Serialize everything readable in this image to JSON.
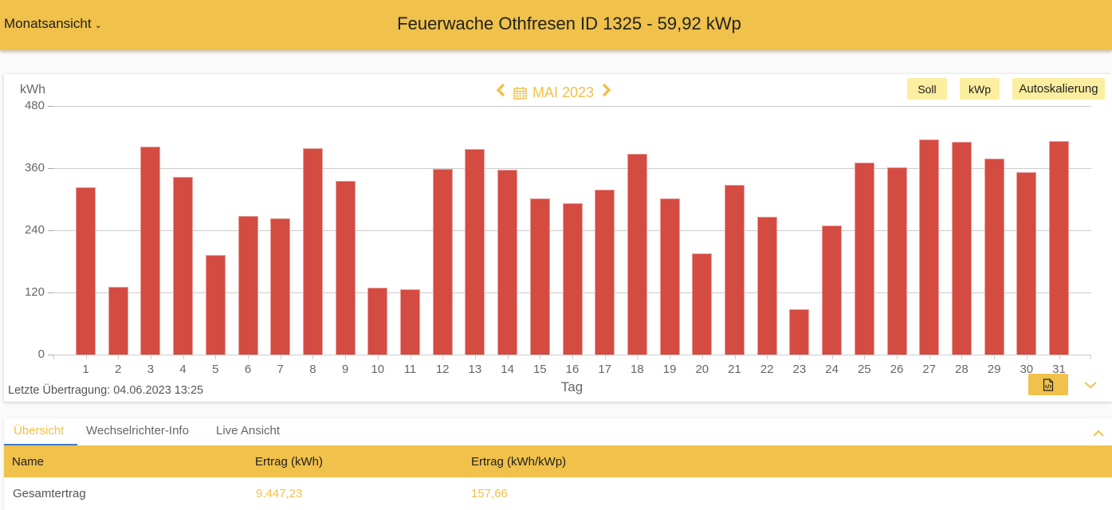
{
  "header": {
    "view_select": "Monatsansicht",
    "title": "Feuerwache Othfresen ID 1325 - 59,92 kWp"
  },
  "chart_nav": {
    "period_label": "MAI 2023",
    "prev_icon": "chevron-left-icon",
    "next_icon": "chevron-right-icon",
    "calendar_icon": "calendar-icon"
  },
  "chart_options": {
    "soll": "Soll",
    "kwp": "kWp",
    "autoscale": "Autoskalierung"
  },
  "chart_footer": {
    "last_transfer": "Letzte Übertragung: 04.06.2023 13:25",
    "export_icon": "file-code-icon",
    "expand_icon": "chevron-down-icon"
  },
  "colors": {
    "accent": "#f0c14b",
    "bar": "#d44b42",
    "button_light": "#fbee9e",
    "tab_underline": "#3f7bd0"
  },
  "chart_data": {
    "type": "bar",
    "title": "MAI 2023",
    "xlabel": "Tag",
    "ylabel": "kWh",
    "ylim": [
      0,
      480
    ],
    "yticks": [
      0,
      120,
      240,
      360,
      480
    ],
    "grid": true,
    "legend": null,
    "categories": [
      "1",
      "2",
      "3",
      "4",
      "5",
      "6",
      "7",
      "8",
      "9",
      "10",
      "11",
      "12",
      "13",
      "14",
      "15",
      "16",
      "17",
      "18",
      "19",
      "20",
      "21",
      "22",
      "23",
      "24",
      "25",
      "26",
      "27",
      "28",
      "29",
      "30",
      "31"
    ],
    "values": [
      323,
      131,
      401,
      343,
      193,
      267,
      263,
      398,
      336,
      129,
      126,
      358,
      397,
      357,
      302,
      292,
      319,
      387,
      302,
      196,
      328,
      266,
      88,
      250,
      371,
      362,
      416,
      411,
      378,
      353,
      412
    ]
  },
  "tabs": [
    {
      "label": "Übersicht",
      "active": true
    },
    {
      "label": "Wechselrichter-Info",
      "active": false
    },
    {
      "label": "Live Ansicht",
      "active": false
    }
  ],
  "table": {
    "headers": [
      "Name",
      "Ertrag (kWh)",
      "Ertrag (kWh/kWp)"
    ],
    "rows": [
      [
        "Gesamtertrag",
        "9.447,23",
        "157,66"
      ]
    ]
  }
}
